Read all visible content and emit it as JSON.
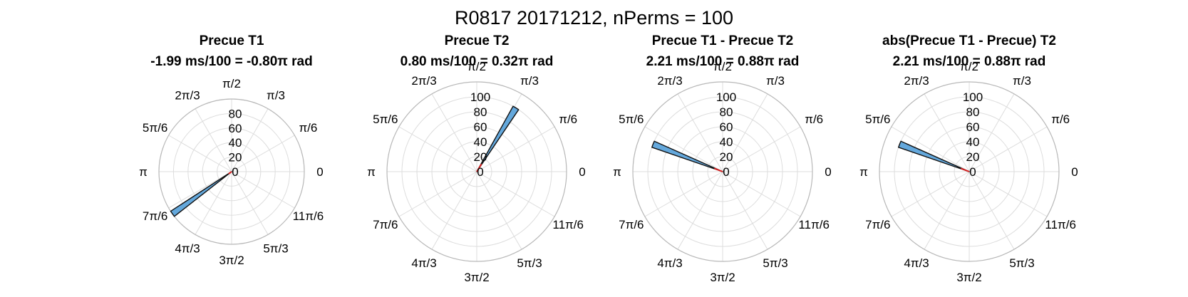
{
  "figure": {
    "title": "R0817 20171212, nPerms = 100"
  },
  "colors": {
    "bar_fill": "#64a8dc",
    "bar_edge": "#111111",
    "mean_line": "#d62020",
    "grid": "#dddddd",
    "axis_circle": "#b8b8b8"
  },
  "chart_data": [
    {
      "type": "polar-histogram",
      "title": "Precue T1",
      "subtitle": "-1.99 ms/100 = -0.80π rad",
      "theta_ticks": [
        "0",
        "π/6",
        "π/3",
        "π/2",
        "2π/3",
        "5π/6",
        "π",
        "7π/6",
        "4π/3",
        "3π/2",
        "5π/3",
        "11π/6"
      ],
      "r_ticks": [
        "0",
        "20",
        "40",
        "60",
        "80"
      ],
      "rlim": [
        0,
        100
      ],
      "bins": [
        {
          "angle_deg": 215.5,
          "width_deg": 5,
          "count": 100
        }
      ],
      "mean_line": {
        "angle_deg": 215.5,
        "length": 5
      }
    },
    {
      "type": "polar-histogram",
      "title": "Precue T2",
      "subtitle": "0.80 ms/100 = 0.32π rad",
      "theta_ticks": [
        "0",
        "π/6",
        "π/3",
        "π/2",
        "2π/3",
        "5π/6",
        "π",
        "7π/6",
        "4π/3",
        "3π/2",
        "5π/3",
        "11π/6"
      ],
      "r_ticks": [
        "0",
        "20",
        "40",
        "60",
        "80",
        "100"
      ],
      "rlim": [
        0,
        120
      ],
      "bins": [
        {
          "angle_deg": 58.5,
          "width_deg": 5,
          "count": 100
        }
      ],
      "mean_line": {
        "angle_deg": 58.5,
        "length": 12
      }
    },
    {
      "type": "polar-histogram",
      "title": "Precue T1 - Precue T2",
      "subtitle": "2.21 ms/100 = 0.88π rad",
      "theta_ticks": [
        "0",
        "π/6",
        "π/3",
        "π/2",
        "2π/3",
        "5π/6",
        "π",
        "7π/6",
        "4π/3",
        "3π/2",
        "5π/3",
        "11π/6"
      ],
      "r_ticks": [
        "0",
        "20",
        "40",
        "60",
        "80",
        "100"
      ],
      "rlim": [
        0,
        120
      ],
      "bins": [
        {
          "angle_deg": 158.5,
          "width_deg": 5,
          "count": 100
        }
      ],
      "mean_line": {
        "angle_deg": 158.5,
        "length": 12
      }
    },
    {
      "type": "polar-histogram",
      "title": "abs(Precue T1 - Precue) T2",
      "subtitle": "2.21 ms/100 = 0.88π rad",
      "theta_ticks": [
        "0",
        "π/6",
        "π/3",
        "π/2",
        "2π/3",
        "5π/6",
        "π",
        "7π/6",
        "4π/3",
        "3π/2",
        "5π/3",
        "11π/6"
      ],
      "r_ticks": [
        "0",
        "20",
        "40",
        "60",
        "80",
        "100"
      ],
      "rlim": [
        0,
        120
      ],
      "bins": [
        {
          "angle_deg": 158.5,
          "width_deg": 5,
          "count": 100
        }
      ],
      "mean_line": {
        "angle_deg": 158.5,
        "length": 12
      }
    }
  ]
}
